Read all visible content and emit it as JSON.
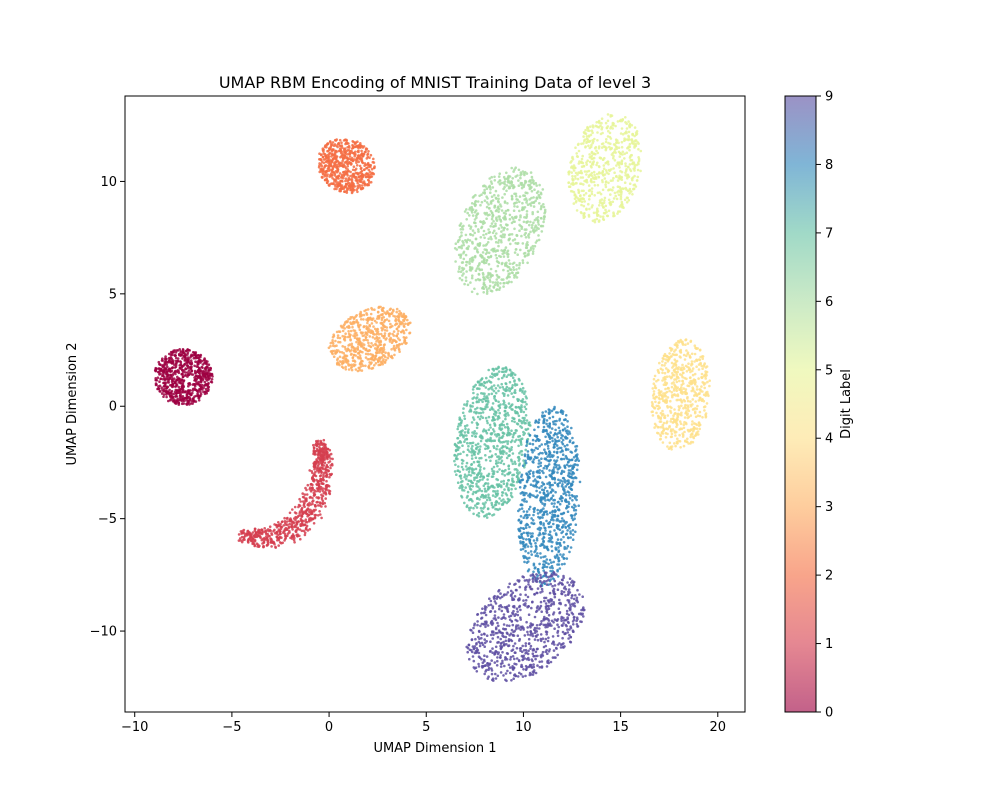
{
  "chart_data": {
    "type": "scatter",
    "title": "UMAP RBM Encoding of MNIST Training Data of level 3",
    "xlabel": "UMAP Dimension 1",
    "ylabel": "UMAP Dimension 2",
    "xlim": [
      -10.5,
      21.4
    ],
    "ylim": [
      -13.6,
      13.8
    ],
    "xticks": [
      -10,
      -5,
      0,
      5,
      10,
      15,
      20
    ],
    "yticks": [
      -10,
      -5,
      0,
      5,
      10
    ],
    "xtick_labels": [
      "−10",
      "−5",
      "0",
      "5",
      "10",
      "15",
      "20"
    ],
    "ytick_labels": [
      "−10",
      "−5",
      "0",
      "5",
      "10"
    ],
    "grid": false,
    "colormap": "Spectral",
    "colorbar": {
      "label": "Digit Label",
      "min": 0,
      "max": 9,
      "ticks": [
        "0",
        "1",
        "2",
        "3",
        "4",
        "5",
        "6",
        "7",
        "8",
        "9"
      ],
      "colors": [
        "#9e0142",
        "#d53e4f",
        "#f46d43",
        "#fdae61",
        "#fee08b",
        "#e6f598",
        "#abdda4",
        "#66c2a5",
        "#3288bd",
        "#5e4fa2"
      ]
    },
    "clusters": [
      {
        "label": 0,
        "color": "#9e0142",
        "center": [
          -7.5,
          1.3
        ],
        "spread": [
          1.5,
          1.25
        ],
        "angle": 0,
        "count": 700
      },
      {
        "label": 1,
        "color": "#d53e4f",
        "shape": "arc",
        "path": [
          [
            -4.4,
            -5.8
          ],
          [
            -3.2,
            -5.9
          ],
          [
            -2.0,
            -5.5
          ],
          [
            -1.0,
            -4.7
          ],
          [
            -0.5,
            -3.5
          ],
          [
            -0.3,
            -2.4
          ],
          [
            -0.5,
            -1.7
          ]
        ],
        "width": 0.75,
        "count": 700
      },
      {
        "label": 2,
        "color": "#f46d43",
        "center": [
          0.9,
          10.7
        ],
        "spread": [
          1.5,
          1.2
        ],
        "angle": 15,
        "count": 600
      },
      {
        "label": 3,
        "color": "#fdae61",
        "center": [
          2.1,
          3.0
        ],
        "spread": [
          2.2,
          1.3
        ],
        "angle": -20,
        "count": 600
      },
      {
        "label": 4,
        "color": "#fee08b",
        "center": [
          18.1,
          0.5
        ],
        "spread": [
          1.5,
          2.5
        ],
        "angle": 8,
        "count": 600
      },
      {
        "label": 5,
        "color": "#e6f598",
        "center": [
          14.2,
          10.6
        ],
        "spread": [
          1.8,
          2.5
        ],
        "angle": 22,
        "count": 600
      },
      {
        "label": 6,
        "color": "#abdda4",
        "center": [
          8.8,
          7.8
        ],
        "spread": [
          2.0,
          3.1
        ],
        "angle": 30,
        "count": 750
      },
      {
        "label": 7,
        "color": "#66c2a5",
        "center": [
          8.4,
          -1.6
        ],
        "spread": [
          1.9,
          3.4
        ],
        "angle": 10,
        "count": 900
      },
      {
        "label": 8,
        "color": "#3288bd",
        "center": [
          11.3,
          -4.0
        ],
        "spread": [
          1.6,
          4.0
        ],
        "angle": 4,
        "count": 900
      },
      {
        "label": 9,
        "color": "#5e4fa2",
        "center": [
          10.1,
          -9.8
        ],
        "spread": [
          3.3,
          2.1
        ],
        "angle": -30,
        "count": 800
      }
    ]
  }
}
